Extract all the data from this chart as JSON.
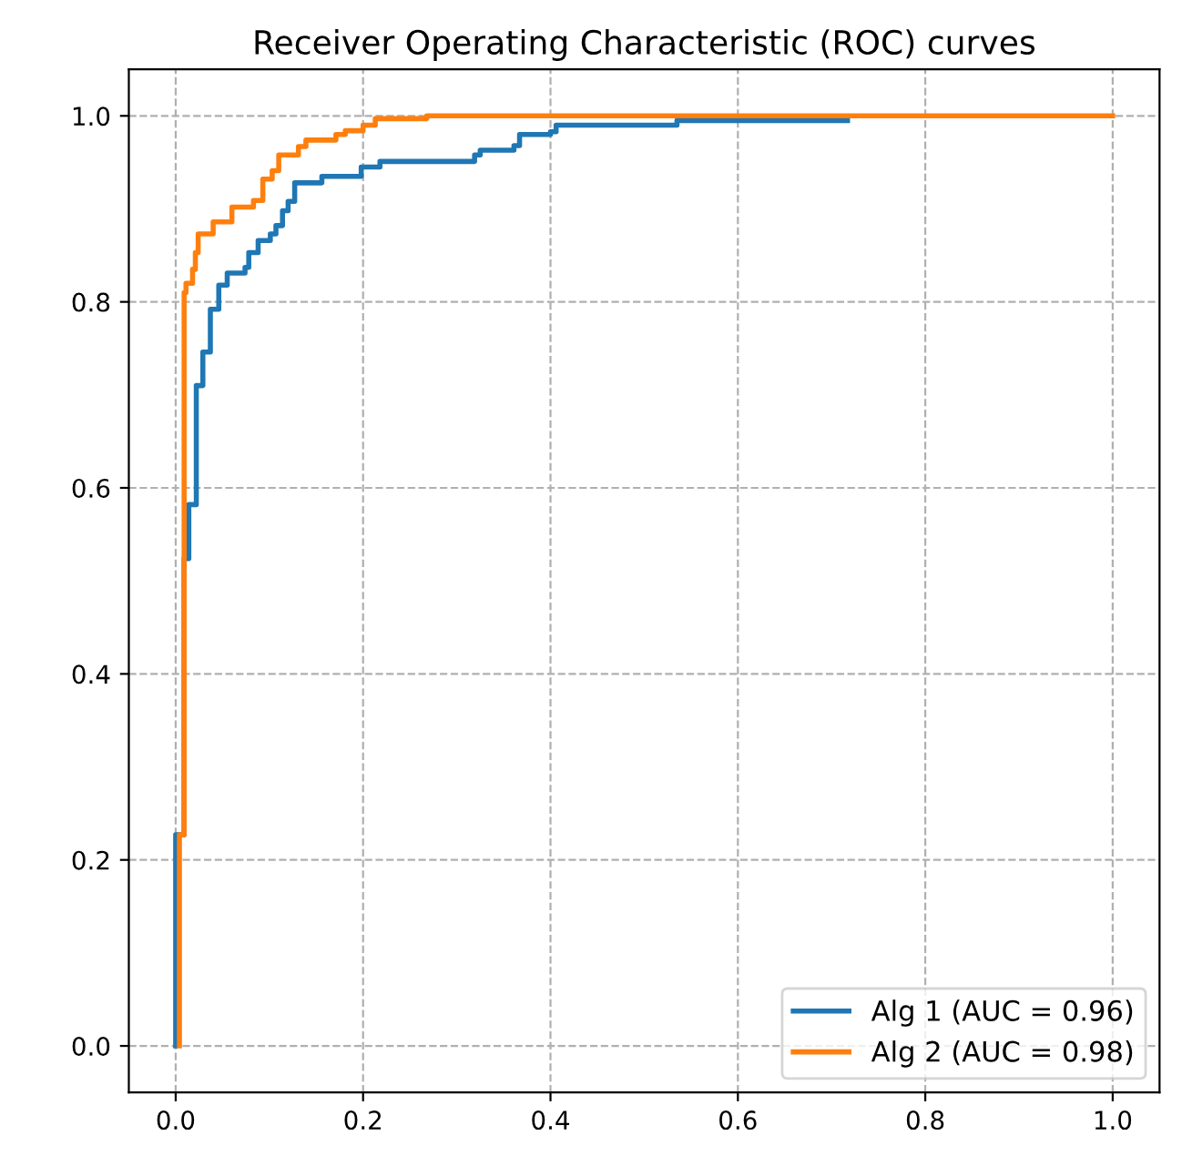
{
  "chart_data": {
    "type": "step",
    "title": "Receiver Operating Characteristic (ROC) curves",
    "xlim": [
      -0.05,
      1.05
    ],
    "ylim": [
      -0.05,
      1.05
    ],
    "xticks": [
      {
        "value": 0,
        "label": "0.0"
      },
      {
        "value": 0.2,
        "label": "0.2"
      },
      {
        "value": 0.4,
        "label": "0.4"
      },
      {
        "value": 0.6,
        "label": "0.6"
      },
      {
        "value": 0.8,
        "label": "0.8"
      },
      {
        "value": 1,
        "label": "1.0"
      }
    ],
    "yticks": [
      {
        "value": 0,
        "label": "0.0"
      },
      {
        "value": 0.2,
        "label": "0.2"
      },
      {
        "value": 0.4,
        "label": "0.4"
      },
      {
        "value": 0.6,
        "label": "0.6"
      },
      {
        "value": 0.8,
        "label": "0.8"
      },
      {
        "value": 1,
        "label": "1.0"
      }
    ],
    "grid": true,
    "legend": "bottom right",
    "line_style": "solid",
    "series": [
      {
        "name": "Alg 1 (AUC = 0.96)",
        "color": "#1f77b4",
        "x": [
          0,
          0,
          0.009,
          0.009,
          0.014,
          0.022,
          0.029,
          0.037,
          0.046,
          0.055,
          0.074,
          0.078,
          0.088,
          0.101,
          0.107,
          0.114,
          0.12,
          0.127,
          0.156,
          0.198,
          0.218,
          0.319,
          0.325,
          0.361,
          0.367,
          0.4,
          0.406,
          0.535,
          0.717
        ],
        "values": [
          0,
          0.227,
          0.276,
          0.524,
          0.582,
          0.71,
          0.746,
          0.792,
          0.818,
          0.831,
          0.837,
          0.853,
          0.866,
          0.873,
          0.882,
          0.898,
          0.908,
          0.928,
          0.935,
          0.945,
          0.951,
          0.958,
          0.963,
          0.968,
          0.98,
          0.983,
          0.99,
          0.995,
          0.995
        ]
      },
      {
        "name": "Alg 2 (AUC = 0.98)",
        "color": "#ff7f0e",
        "x": [
          0.004,
          0.004,
          0.009,
          0.011,
          0.018,
          0.021,
          0.024,
          0.04,
          0.06,
          0.083,
          0.093,
          0.103,
          0.11,
          0.131,
          0.139,
          0.171,
          0.181,
          0.2,
          0.213,
          0.268,
          1.0
        ],
        "values": [
          0,
          0.227,
          0.81,
          0.82,
          0.835,
          0.853,
          0.873,
          0.886,
          0.902,
          0.909,
          0.932,
          0.941,
          0.958,
          0.967,
          0.974,
          0.98,
          0.984,
          0.99,
          0.997,
          1.0,
          1.0
        ]
      }
    ]
  }
}
